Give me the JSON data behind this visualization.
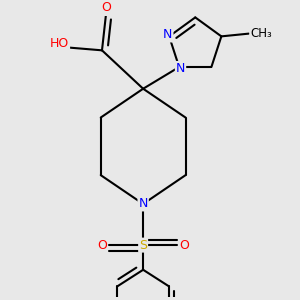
{
  "bg_color": "#e8e8e8",
  "bond_color": "#000000",
  "bond_width": 1.5,
  "atom_colors": {
    "N": "#0000ff",
    "O": "#ff0000",
    "S": "#ccaa00",
    "C": "#000000",
    "H": "#808080"
  },
  "font_size_atoms": 9,
  "font_size_methyl": 8.5
}
